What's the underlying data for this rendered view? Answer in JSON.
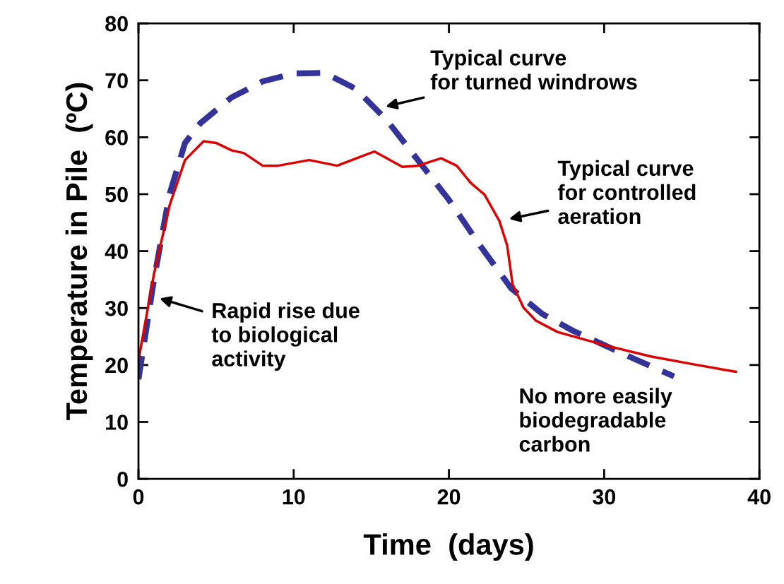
{
  "chart_data": {
    "type": "line",
    "xlabel": "Time  (days)",
    "ylabel": "Temperature in Pile  (ºC)",
    "xlim": [
      0,
      40
    ],
    "xticks": [
      0,
      10,
      20,
      30,
      40
    ],
    "ylim": [
      0,
      80
    ],
    "yticks": [
      0,
      10,
      20,
      30,
      40,
      50,
      60,
      70,
      80
    ],
    "grid": false,
    "legend": false,
    "series": [
      {
        "color": "#333399",
        "line_style": "dashed",
        "x": [
          0,
          1,
          2,
          3,
          4,
          6,
          8,
          10,
          12,
          14,
          16,
          18,
          20,
          22,
          24,
          26,
          28,
          30,
          32,
          34.5
        ],
        "values": [
          17.5,
          35,
          50,
          59,
          62.5,
          67,
          69.8,
          71.2,
          71.3,
          68.5,
          63,
          56,
          49,
          41,
          33.5,
          29,
          26,
          23.5,
          21,
          18
        ]
      },
      {
        "color": "#dd0000",
        "line_style": "solid",
        "x": [
          0,
          1,
          2,
          3,
          4.2,
          5,
          6,
          6.8,
          8,
          9,
          11,
          12.8,
          15.2,
          17,
          18,
          19.5,
          20.5,
          21.4,
          22.3,
          23.25,
          23.75,
          24.1,
          24.8,
          25.6,
          27,
          30,
          33,
          36,
          38.5
        ],
        "values": [
          20.8,
          36,
          48,
          56,
          59.3,
          59,
          57.7,
          57.2,
          55,
          55,
          56,
          55,
          57.5,
          54.8,
          55,
          56.3,
          55,
          52,
          49.9,
          45.3,
          41,
          34.2,
          30.1,
          27.8,
          25.8,
          23.5,
          21.5,
          20,
          18.8
        ]
      }
    ],
    "annotations": [
      {
        "text": "Typical curve\nfor turned windrows",
        "x": 15.3,
        "y": 65
      },
      {
        "text": "Typical curve\nfor controlled\naeration",
        "x": 23.25,
        "y": 45.3
      },
      {
        "text": "Rapid rise due\nto biological\nactivity",
        "x": 0.75,
        "y": 32.2
      },
      "No more easily\nbiodegradable\ncarbon"
    ]
  }
}
